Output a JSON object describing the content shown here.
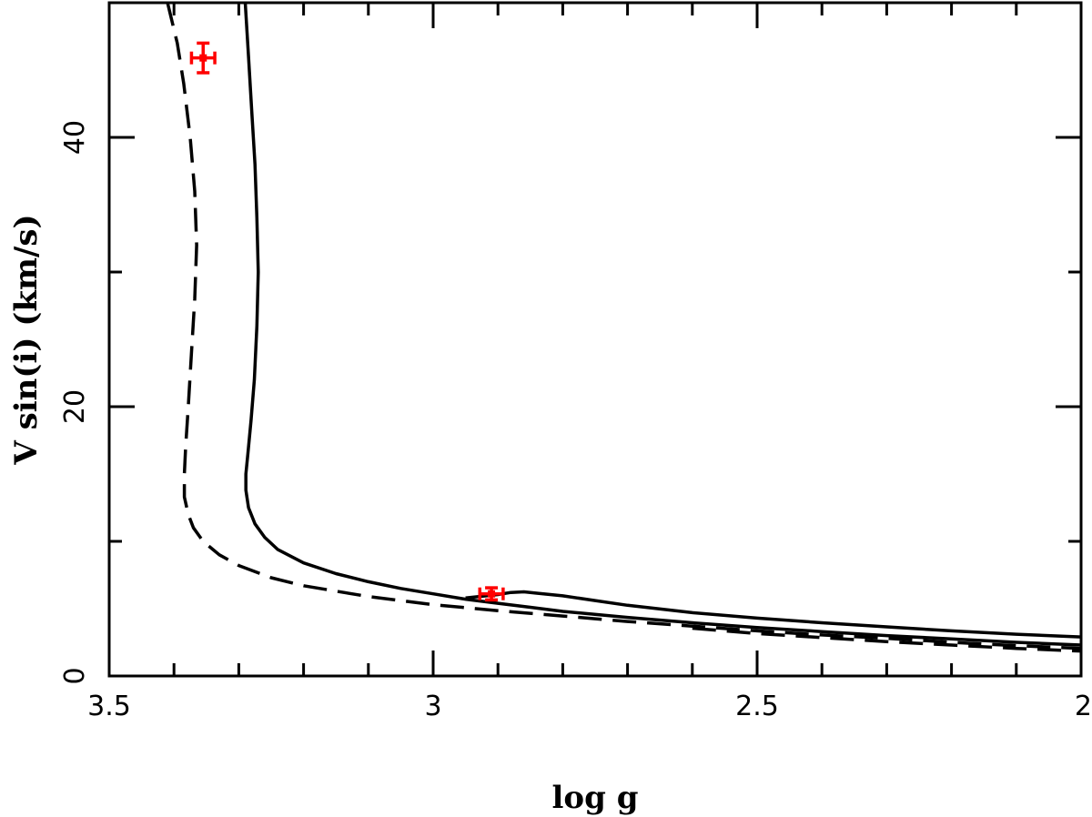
{
  "chart_data": {
    "type": "line",
    "title": "",
    "xlabel": "log g",
    "ylabel": "V sin(i)  (km/s)",
    "xlim": [
      3.5,
      2.0
    ],
    "ylim": [
      0,
      50
    ],
    "x_reversed": true,
    "xticks": [
      3.5,
      3.0,
      2.5,
      2.0
    ],
    "xtick_labels": [
      "3.5",
      "3",
      "2.5",
      "2"
    ],
    "x_minor_step": 0.1,
    "yticks": [
      0,
      20,
      40
    ],
    "ytick_labels": [
      "0",
      "20",
      "40"
    ],
    "y_minor_step": 10,
    "grid": false,
    "legend": "none",
    "series": [
      {
        "style": "solid",
        "color": "#000000",
        "points": [
          [
            3.29,
            50
          ],
          [
            3.285,
            46
          ],
          [
            3.28,
            42
          ],
          [
            3.275,
            38
          ],
          [
            3.272,
            34
          ],
          [
            3.27,
            30
          ],
          [
            3.272,
            26
          ],
          [
            3.276,
            22
          ],
          [
            3.281,
            19
          ],
          [
            3.286,
            16.5
          ],
          [
            3.289,
            15
          ],
          [
            3.289,
            13.8
          ],
          [
            3.285,
            12.5
          ],
          [
            3.275,
            11.3
          ],
          [
            3.26,
            10.3
          ],
          [
            3.24,
            9.4
          ],
          [
            3.2,
            8.4
          ],
          [
            3.15,
            7.6
          ],
          [
            3.1,
            7.0
          ],
          [
            3.05,
            6.5
          ],
          [
            3.0,
            6.1
          ],
          [
            2.95,
            5.7
          ],
          [
            2.9,
            5.4
          ],
          [
            2.85,
            5.1
          ],
          [
            2.8,
            4.8
          ],
          [
            2.7,
            4.35
          ],
          [
            2.6,
            3.95
          ],
          [
            2.5,
            3.6
          ],
          [
            2.4,
            3.3
          ],
          [
            2.3,
            3.0
          ],
          [
            2.2,
            2.75
          ],
          [
            2.1,
            2.5
          ],
          [
            2.0,
            2.3
          ]
        ]
      },
      {
        "style": "solid",
        "color": "#000000",
        "points": [
          [
            2.95,
            5.8
          ],
          [
            2.9,
            6.05
          ],
          [
            2.88,
            6.2
          ],
          [
            2.86,
            6.25
          ],
          [
            2.84,
            6.15
          ],
          [
            2.8,
            5.95
          ],
          [
            2.75,
            5.6
          ],
          [
            2.7,
            5.25
          ],
          [
            2.6,
            4.7
          ],
          [
            2.5,
            4.3
          ],
          [
            2.4,
            3.95
          ],
          [
            2.3,
            3.65
          ],
          [
            2.2,
            3.35
          ],
          [
            2.1,
            3.1
          ],
          [
            2.0,
            2.9
          ]
        ]
      },
      {
        "style": "dashed",
        "color": "#000000",
        "points": [
          [
            3.41,
            50
          ],
          [
            3.395,
            47
          ],
          [
            3.385,
            44
          ],
          [
            3.375,
            40
          ],
          [
            3.368,
            36
          ],
          [
            3.365,
            32
          ],
          [
            3.368,
            28
          ],
          [
            3.373,
            24
          ],
          [
            3.378,
            20
          ],
          [
            3.382,
            17
          ],
          [
            3.384,
            15
          ],
          [
            3.384,
            13.3
          ],
          [
            3.378,
            12
          ],
          [
            3.37,
            11
          ],
          [
            3.355,
            10
          ],
          [
            3.33,
            9
          ],
          [
            3.3,
            8.2
          ],
          [
            3.25,
            7.3
          ],
          [
            3.2,
            6.7
          ],
          [
            3.1,
            5.9
          ],
          [
            3.0,
            5.3
          ],
          [
            2.9,
            4.85
          ],
          [
            2.8,
            4.45
          ],
          [
            2.7,
            4.05
          ],
          [
            2.6,
            3.7
          ],
          [
            2.5,
            3.35
          ],
          [
            2.4,
            3.05
          ],
          [
            2.3,
            2.8
          ],
          [
            2.2,
            2.5
          ],
          [
            2.1,
            2.25
          ],
          [
            2.0,
            2.05
          ]
        ]
      },
      {
        "style": "dashed",
        "color": "#000000",
        "points": [
          [
            2.6,
            3.55
          ],
          [
            2.5,
            3.15
          ],
          [
            2.4,
            2.85
          ],
          [
            2.3,
            2.55
          ],
          [
            2.2,
            2.3
          ],
          [
            2.1,
            2.05
          ],
          [
            2.0,
            1.85
          ]
        ]
      }
    ],
    "points": [
      {
        "x": 3.355,
        "y": 45.9,
        "xerr": 0.018,
        "yerr": 1.1,
        "color": "#ff0000"
      },
      {
        "x": 2.91,
        "y": 6.1,
        "xerr": 0.018,
        "yerr": 0.45,
        "color": "#ff0000"
      }
    ]
  }
}
